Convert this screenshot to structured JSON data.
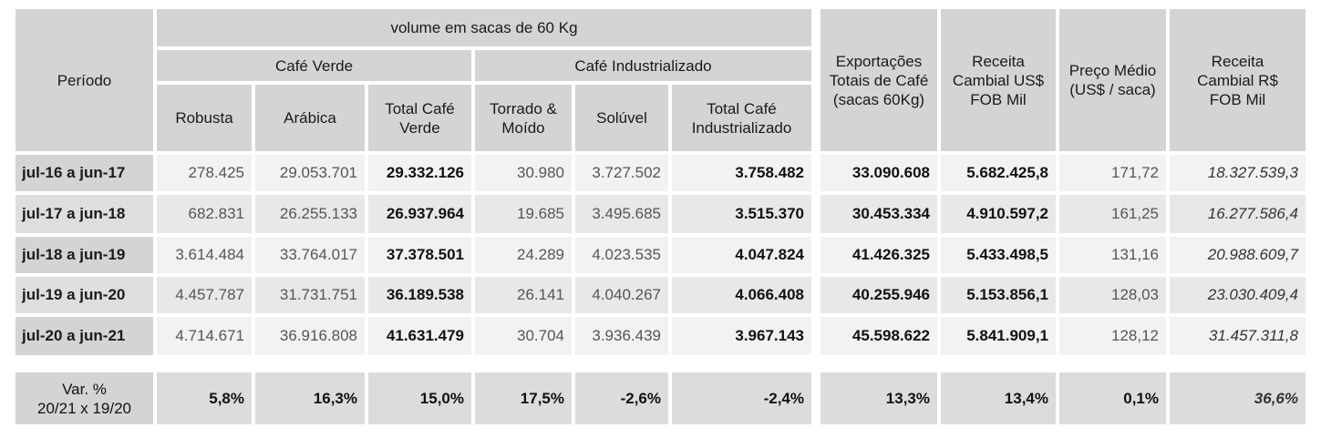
{
  "header": {
    "periodo": "Período",
    "volume": "volume em sacas de 60 Kg",
    "cafe_verde": "Café Verde",
    "cafe_industrializado": "Café Industrializado",
    "robusta": "Robusta",
    "arabica": "Arábica",
    "total_verde": "Total Café Verde",
    "torrado": "Torrado & Moído",
    "soluvel": "Solúvel",
    "total_ind": "Total Café Industrializado",
    "exportacoes": "Exportações Totais de Café (sacas 60Kg)",
    "receita_usd": "Receita Cambial US$ FOB Mil",
    "preco": "Preço Médio (US$ / saca)",
    "receita_brl": "Receita Cambial R$ FOB Mil"
  },
  "rows": [
    {
      "periodo": "jul-16 a jun-17",
      "robusta": "278.425",
      "arabica": "29.053.701",
      "total_verde": "29.332.126",
      "torrado": "30.980",
      "soluvel": "3.727.502",
      "total_ind": "3.758.482",
      "exportacoes": "33.090.608",
      "receita_usd": "5.682.425,8",
      "preco": "171,72",
      "receita_brl": "18.327.539,3"
    },
    {
      "periodo": "jul-17 a jun-18",
      "robusta": "682.831",
      "arabica": "26.255.133",
      "total_verde": "26.937.964",
      "torrado": "19.685",
      "soluvel": "3.495.685",
      "total_ind": "3.515.370",
      "exportacoes": "30.453.334",
      "receita_usd": "4.910.597,2",
      "preco": "161,25",
      "receita_brl": "16.277.586,4"
    },
    {
      "periodo": "jul-18 a jun-19",
      "robusta": "3.614.484",
      "arabica": "33.764.017",
      "total_verde": "37.378.501",
      "torrado": "24.289",
      "soluvel": "4.023.535",
      "total_ind": "4.047.824",
      "exportacoes": "41.426.325",
      "receita_usd": "5.433.498,5",
      "preco": "131,16",
      "receita_brl": "20.988.609,7"
    },
    {
      "periodo": "jul-19 a jun-20",
      "robusta": "4.457.787",
      "arabica": "31.731.751",
      "total_verde": "36.189.538",
      "torrado": "26.141",
      "soluvel": "4.040.267",
      "total_ind": "4.066.408",
      "exportacoes": "40.255.946",
      "receita_usd": "5.153.856,1",
      "preco": "128,03",
      "receita_brl": "23.030.409,4"
    },
    {
      "periodo": "jul-20 a jun-21",
      "robusta": "4.714.671",
      "arabica": "36.916.808",
      "total_verde": "41.631.479",
      "torrado": "30.704",
      "soluvel": "3.936.439",
      "total_ind": "3.967.143",
      "exportacoes": "45.598.622",
      "receita_usd": "5.841.909,1",
      "preco": "128,12",
      "receita_brl": "31.457.311,8"
    }
  ],
  "variation": {
    "label_line1": "Var. %",
    "label_line2": "20/21 x 19/20",
    "robusta": "5,8%",
    "arabica": "16,3%",
    "total_verde": "15,0%",
    "torrado": "17,5%",
    "soluvel": "-2,6%",
    "total_ind": "-2,4%",
    "exportacoes": "13,3%",
    "receita_usd": "13,4%",
    "preco": "0,1%",
    "receita_brl": "36,6%"
  }
}
